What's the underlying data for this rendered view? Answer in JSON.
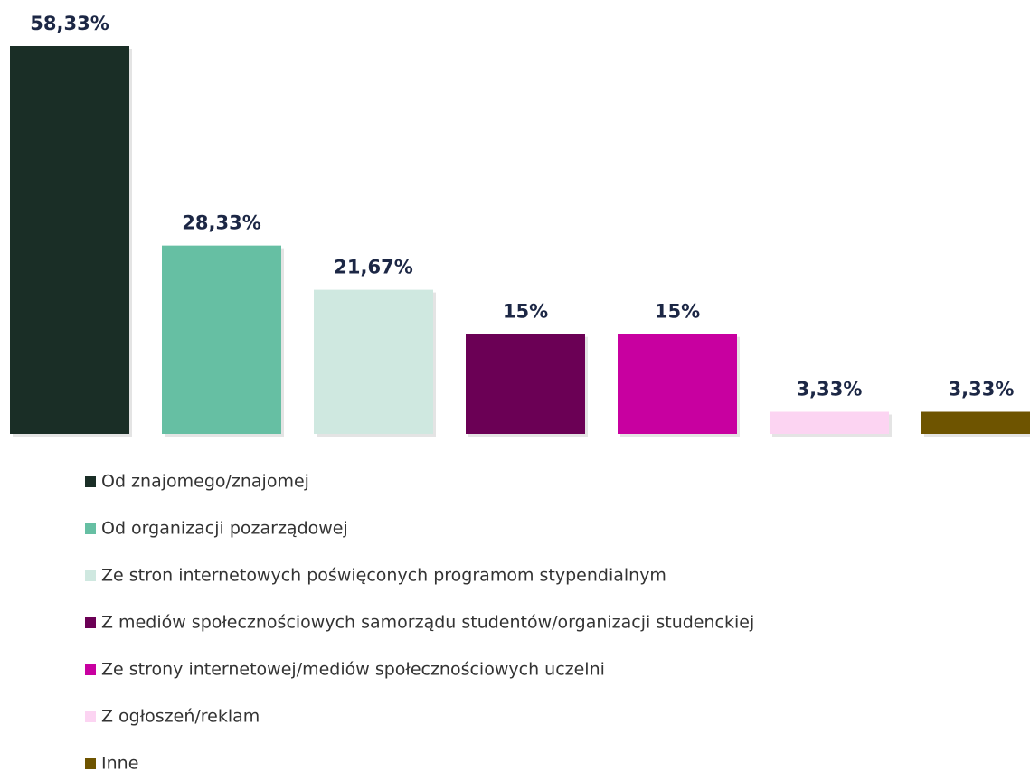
{
  "chart_data": {
    "type": "bar",
    "series": [
      {
        "name": "Od znajomego/znajomej",
        "color": "#1a2e26",
        "values": [
          58.33
        ],
        "value_labels": [
          "58,33%"
        ]
      },
      {
        "name": "Od organizacji pozarządowej",
        "color": "#66bfa3",
        "values": [
          28.33
        ],
        "value_labels": [
          "28,33%"
        ]
      },
      {
        "name": "Ze stron internetowych poświęconych programom stypendialnym",
        "color": "#cfe8e0",
        "values": [
          21.67
        ],
        "value_labels": [
          "21,67%"
        ]
      },
      {
        "name": "Z mediów społecznościowych samorządu studentów/organizacji studenckiej",
        "color": "#6b0055",
        "values": [
          15
        ],
        "value_labels": [
          "15%"
        ]
      },
      {
        "name": "Ze strony internetowej/mediów społecznościowych uczelni",
        "color": "#c800a0",
        "values": [
          15
        ],
        "value_labels": [
          "15%"
        ]
      },
      {
        "name": "Z ogłoszeń/reklam",
        "color": "#fcd4f2",
        "values": [
          3.33
        ],
        "value_labels": [
          "3,33%"
        ]
      },
      {
        "name": "Inne",
        "color": "#6e5400",
        "values": [
          3.33
        ],
        "value_labels": [
          "3,33%"
        ]
      }
    ]
  }
}
